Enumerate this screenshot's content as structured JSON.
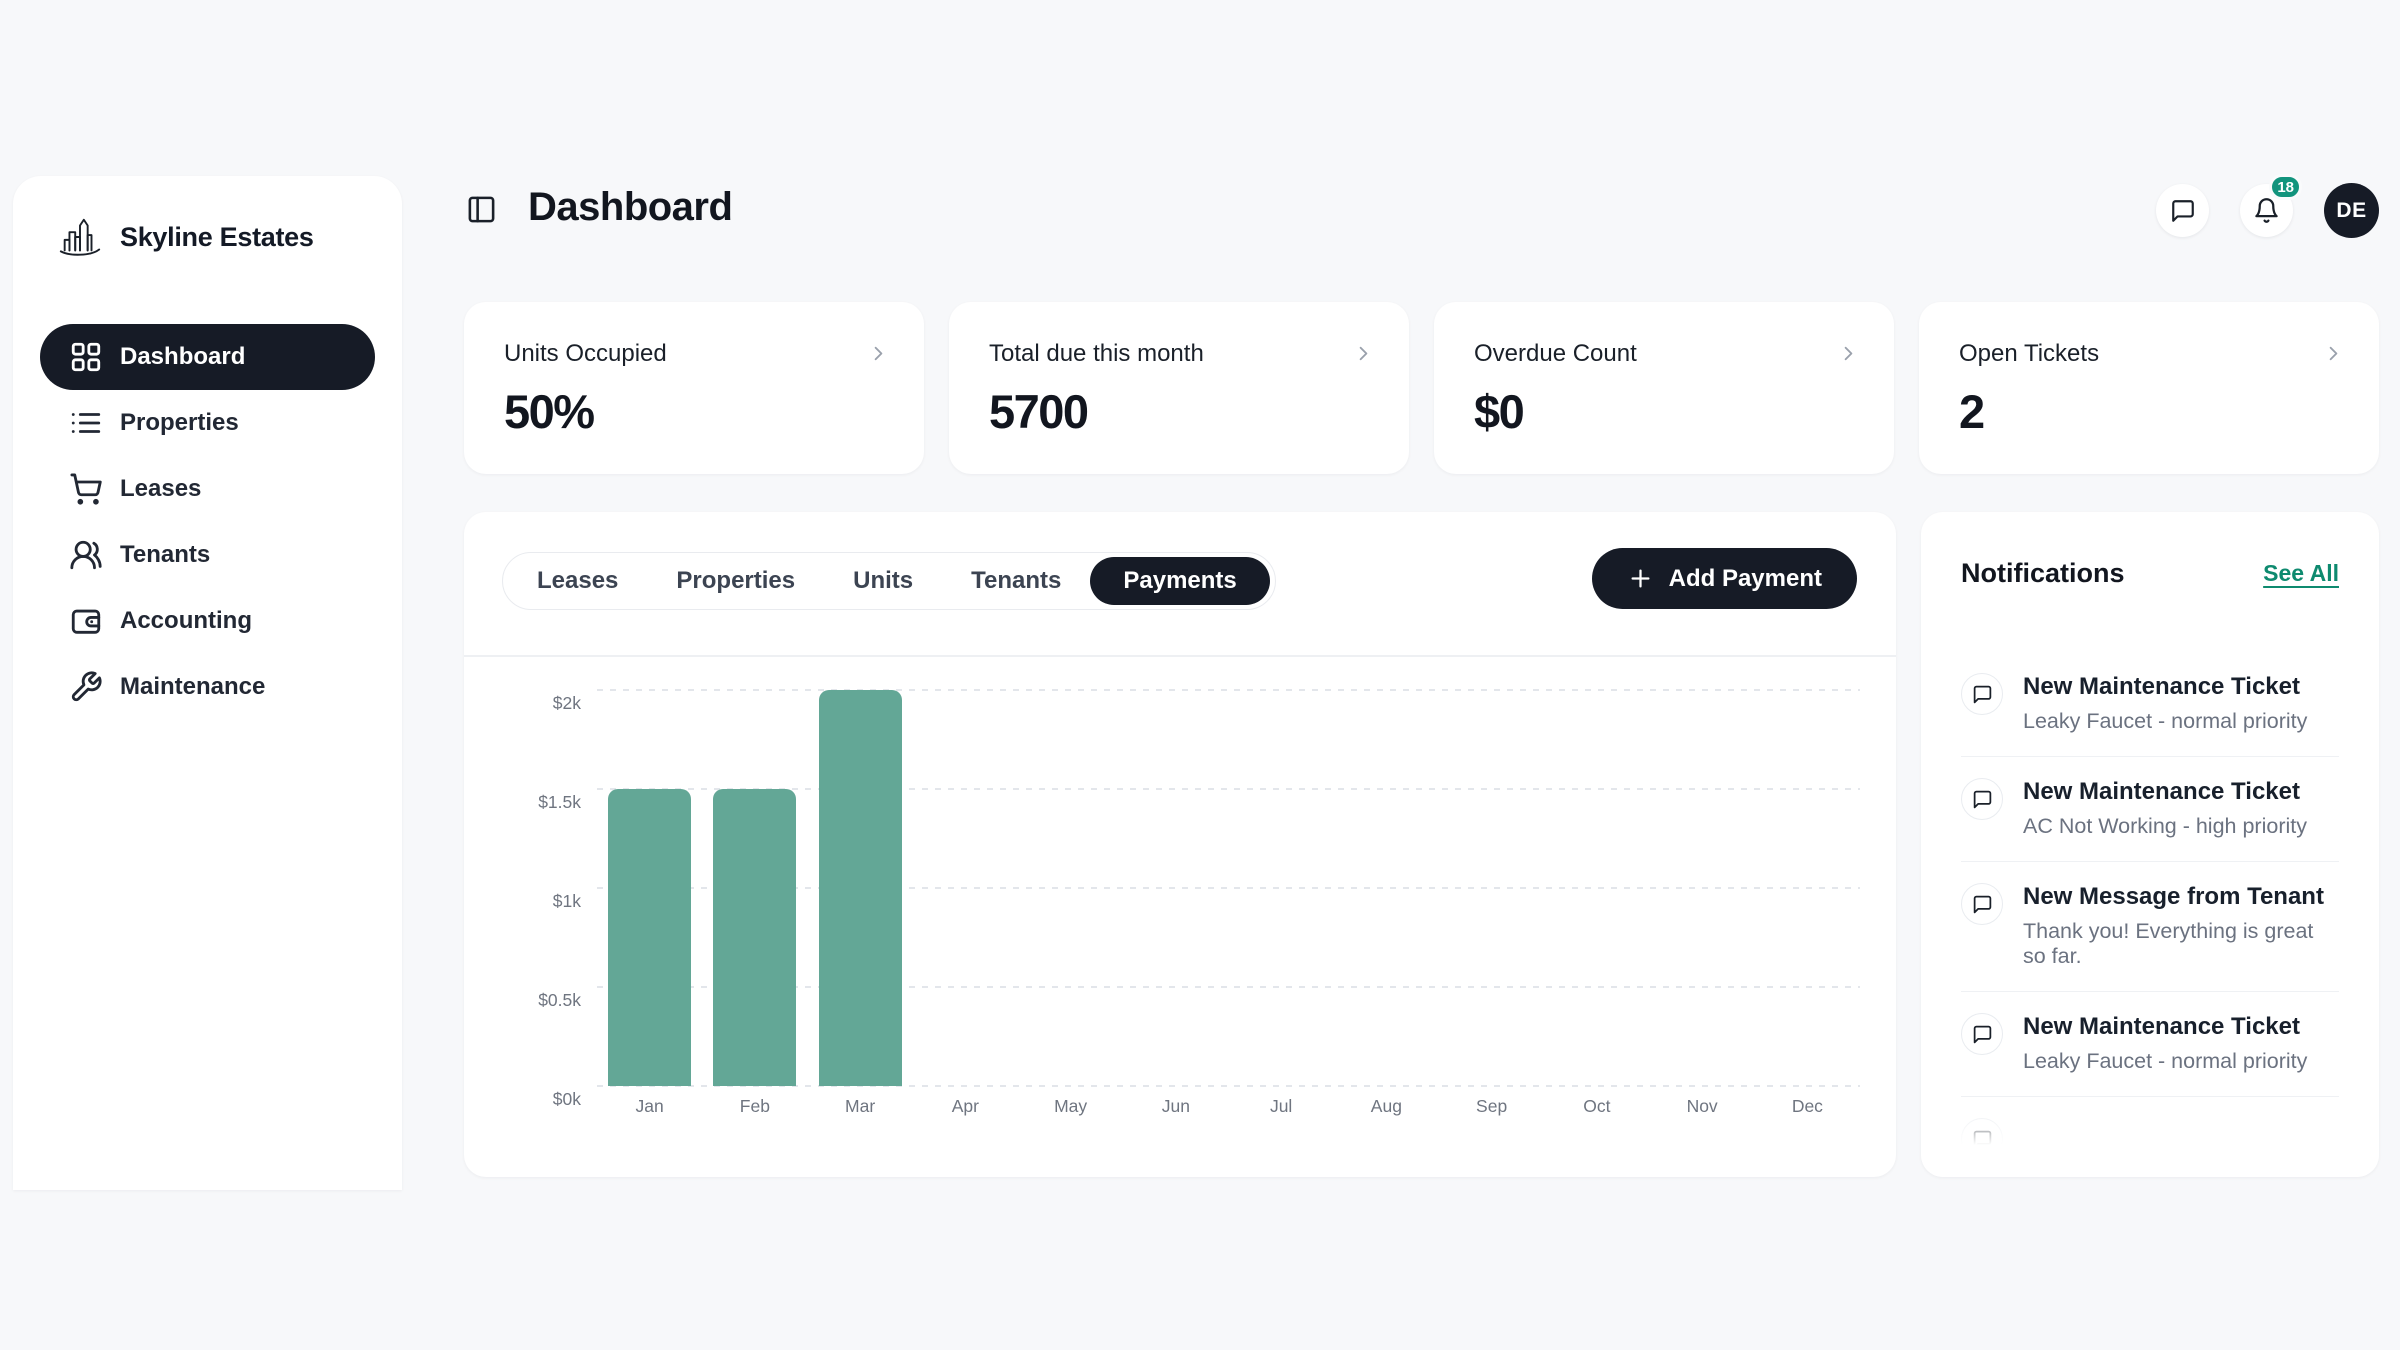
{
  "brand": {
    "name": "Skyline Estates",
    "logo_icon": "skyline-logo"
  },
  "sidebar": {
    "items": [
      {
        "label": "Dashboard",
        "icon": "layout-grid",
        "active": true
      },
      {
        "label": "Properties",
        "icon": "list",
        "active": false
      },
      {
        "label": "Leases",
        "icon": "shopping-cart",
        "active": false
      },
      {
        "label": "Tenants",
        "icon": "users",
        "active": false
      },
      {
        "label": "Accounting",
        "icon": "wallet",
        "active": false
      },
      {
        "label": "Maintenance",
        "icon": "wrench",
        "active": false
      }
    ]
  },
  "header": {
    "title": "Dashboard",
    "toggle_icon": "panel-left",
    "chat_icon": "message-square",
    "bell_icon": "bell",
    "badge": "18",
    "avatar_initials": "DE"
  },
  "stats": [
    {
      "label": "Units Occupied",
      "value": "50%"
    },
    {
      "label": "Total due this month",
      "value": "5700"
    },
    {
      "label": "Overdue Count",
      "value": "$0"
    },
    {
      "label": "Open Tickets",
      "value": "2"
    }
  ],
  "main": {
    "tabs": [
      {
        "label": "Leases",
        "active": false
      },
      {
        "label": "Properties",
        "active": false
      },
      {
        "label": "Units",
        "active": false
      },
      {
        "label": "Tenants",
        "active": false
      },
      {
        "label": "Payments",
        "active": true
      }
    ],
    "add_button": {
      "label": "Add Payment",
      "icon": "plus"
    }
  },
  "chart_data": {
    "type": "bar",
    "x": [
      "Jan",
      "Feb",
      "Mar",
      "Apr",
      "May",
      "Jun",
      "Jul",
      "Aug",
      "Sep",
      "Oct",
      "Nov",
      "Dec"
    ],
    "values": [
      1500,
      1500,
      2000,
      0,
      0,
      0,
      0,
      0,
      0,
      0,
      0,
      0
    ],
    "y_ticks": [
      {
        "value": 0,
        "label": "$0k"
      },
      {
        "value": 500,
        "label": "$0.5k"
      },
      {
        "value": 1000,
        "label": "$1k"
      },
      {
        "value": 1500,
        "label": "$1.5k"
      },
      {
        "value": 2000,
        "label": "$2k"
      }
    ],
    "ylim": [
      0,
      2000
    ],
    "title": "",
    "xlabel": "",
    "ylabel": "",
    "grid": "dashed-horizontal",
    "legend": "none"
  },
  "notifications": {
    "title": "Notifications",
    "see_all": "See All",
    "items": [
      {
        "title": "New Maintenance Ticket",
        "subtitle": "Leaky Faucet - normal priority"
      },
      {
        "title": "New Maintenance Ticket",
        "subtitle": "AC Not Working - high priority"
      },
      {
        "title": "New Message from Tenant",
        "subtitle": "Thank you! Everything is great so far."
      },
      {
        "title": "New Maintenance Ticket",
        "subtitle": "Leaky Faucet - normal priority"
      }
    ],
    "partial_item_visible": true
  },
  "colors": {
    "dark": "#161B26",
    "accent_teal": "#0E8A6F",
    "badge_teal": "#12947D",
    "bar_teal": "#63A796"
  }
}
